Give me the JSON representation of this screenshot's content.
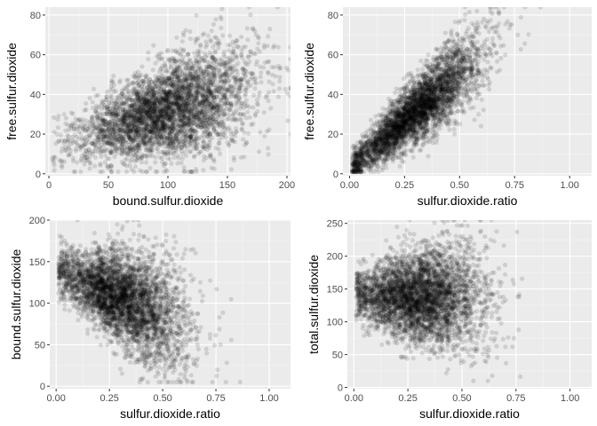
{
  "chart_data": [
    {
      "type": "scatter",
      "xlabel": "bound.sulfur.dioxide",
      "ylabel": "free.sulfur.dioxide",
      "xlim": [
        -3,
        203
      ],
      "ylim": [
        -1,
        84
      ],
      "xticks": [
        0,
        50,
        100,
        150,
        200
      ],
      "xtick_labels": [
        "0",
        "50",
        "100",
        "150",
        "200"
      ],
      "yticks": [
        0,
        20,
        40,
        60,
        80
      ],
      "ytick_labels": [
        "0",
        "20",
        "40",
        "60",
        "80"
      ],
      "grid": true,
      "point_color": "#000000",
      "point_alpha": 0.12,
      "n_points": 4000,
      "trend": {
        "x_distribution": {
          "center": 100,
          "spread": 36,
          "min": 3,
          "max": 203
        },
        "y_given_x": {
          "intercept": 14,
          "slope": 0.18,
          "spread": 14,
          "min": 1,
          "max": 84
        }
      }
    },
    {
      "type": "scatter",
      "xlabel": "sulfur.dioxide.ratio",
      "ylabel": "free.sulfur.dioxide",
      "xlim": [
        -0.03,
        1.1
      ],
      "ylim": [
        -1,
        84
      ],
      "xticks": [
        0,
        0.25,
        0.5,
        0.75,
        1.0
      ],
      "xtick_labels": [
        "0.00",
        "0.25",
        "0.50",
        "0.75",
        "1.00"
      ],
      "yticks": [
        0,
        20,
        40,
        60,
        80
      ],
      "ytick_labels": [
        "0",
        "20",
        "40",
        "60",
        "80"
      ],
      "grid": true,
      "point_color": "#000000",
      "point_alpha": 0.12,
      "n_points": 4000,
      "trend": {
        "x_distribution": {
          "center": 0.3,
          "spread": 0.15,
          "min": 0.01,
          "max": 1.1
        },
        "y_given_x": {
          "intercept": 3,
          "slope": 95,
          "spread": 9,
          "min": 1,
          "max": 84
        }
      }
    },
    {
      "type": "scatter",
      "xlabel": "sulfur.dioxide.ratio",
      "ylabel": "bound.sulfur.dioxide",
      "xlim": [
        -0.03,
        1.1
      ],
      "ylim": [
        -3,
        200
      ],
      "xticks": [
        0,
        0.25,
        0.5,
        0.75,
        1.0
      ],
      "xtick_labels": [
        "0.00",
        "0.25",
        "0.50",
        "0.75",
        "1.00"
      ],
      "yticks": [
        0,
        50,
        100,
        150,
        200
      ],
      "ytick_labels": [
        "0",
        "50",
        "100",
        "150",
        "200"
      ],
      "grid": true,
      "point_color": "#000000",
      "point_alpha": 0.12,
      "n_points": 4000,
      "trend": {
        "x_distribution": {
          "center": 0.3,
          "spread": 0.15,
          "min": 0.01,
          "max": 1.1
        },
        "y_given_x": {
          "intercept": 140,
          "slope": -110,
          "spread": 32,
          "min": 5,
          "max": 200
        }
      }
    },
    {
      "type": "scatter",
      "xlabel": "sulfur.dioxide.ratio",
      "ylabel": "total.sulfur.dioxide",
      "xlim": [
        -0.03,
        1.1
      ],
      "ylim": [
        -2,
        255
      ],
      "xticks": [
        0,
        0.25,
        0.5,
        0.75,
        1.0
      ],
      "xtick_labels": [
        "0.00",
        "0.25",
        "0.50",
        "0.75",
        "1.00"
      ],
      "yticks": [
        0,
        50,
        100,
        150,
        200,
        250
      ],
      "ytick_labels": [
        "0",
        "50",
        "100",
        "150",
        "200",
        "250"
      ],
      "grid": true,
      "point_color": "#000000",
      "point_alpha": 0.12,
      "n_points": 4000,
      "trend": {
        "x_distribution": {
          "center": 0.3,
          "spread": 0.15,
          "min": 0.01,
          "max": 1.1
        },
        "y_given_x": {
          "intercept": 138,
          "slope": 0,
          "spread": 42,
          "min": 10,
          "max": 255
        }
      }
    }
  ]
}
